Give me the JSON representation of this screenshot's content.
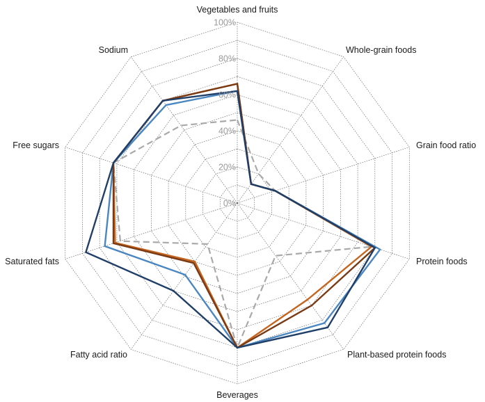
{
  "chart_data": {
    "type": "radar",
    "title": "",
    "axes": [
      "Vegetables and fruits",
      "Whole-grain foods",
      "Grain food ratio",
      "Protein foods",
      "Plant-based protein foods",
      "Beverages",
      "Fatty acid ratio",
      "Saturated fats",
      "Free sugars",
      "Sodium"
    ],
    "rlim": [
      0,
      100
    ],
    "rticks": [
      0,
      20,
      40,
      60,
      80,
      100
    ],
    "rtick_labels": [
      "0%",
      "20%",
      "40%",
      "60%",
      "80%",
      "100%"
    ],
    "grid": true,
    "legend": "none",
    "series": [
      {
        "color": "#a9a9a9",
        "dashed": true,
        "width": 2.2,
        "values": [
          46,
          20,
          22,
          78,
          36,
          80,
          28,
          68,
          72,
          53
        ]
      },
      {
        "color": "#c5651f",
        "dashed": false,
        "width": 2.4,
        "values": [
          66,
          13,
          22,
          78,
          66,
          80,
          40,
          71,
          72,
          70
        ]
      },
      {
        "color": "#4a86c0",
        "dashed": false,
        "width": 2.4,
        "values": [
          62,
          13,
          22,
          83,
          82,
          80,
          49,
          77,
          72,
          67
        ]
      },
      {
        "color": "#7a3a14",
        "dashed": false,
        "width": 2.4,
        "values": [
          66,
          13,
          22,
          80,
          70,
          80,
          41,
          72,
          72,
          70
        ]
      },
      {
        "color": "#1f3f68",
        "dashed": false,
        "width": 2.4,
        "values": [
          62,
          13,
          22,
          80,
          85,
          80,
          60,
          88,
          72,
          70
        ]
      }
    ]
  }
}
